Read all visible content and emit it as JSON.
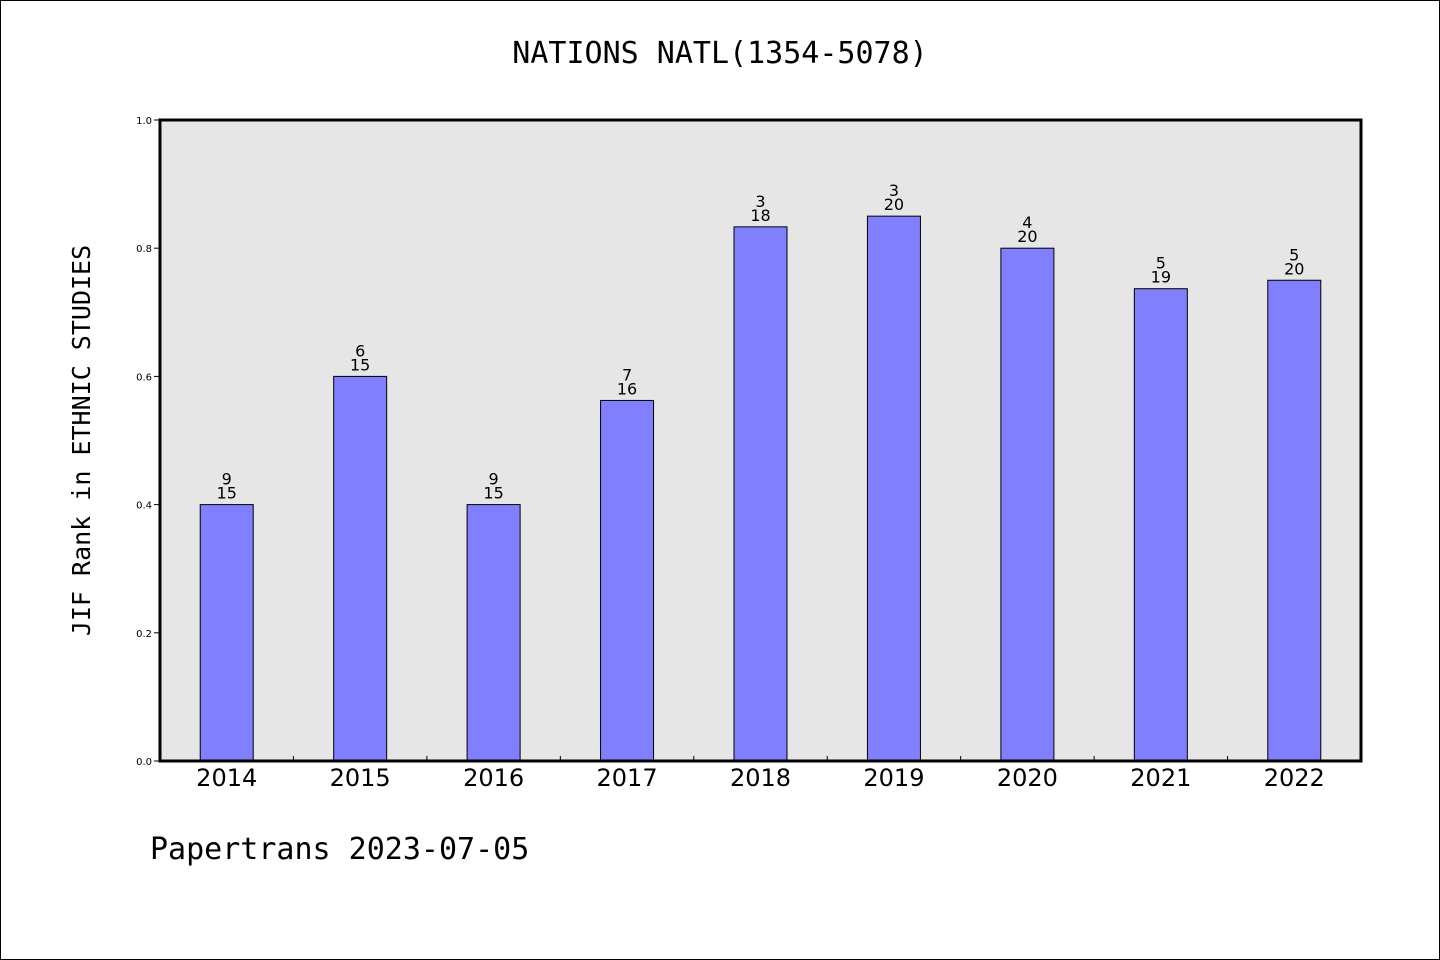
{
  "title": "NATIONS NATL(1354-5078)",
  "footer": "Papertrans 2023-07-05",
  "chart_data": {
    "type": "bar",
    "title": "NATIONS NATL(1354-5078)",
    "xlabel": "",
    "ylabel": "JIF Rank in ETHNIC STUDIES",
    "categories": [
      "2014",
      "2015",
      "2016",
      "2017",
      "2018",
      "2019",
      "2020",
      "2021",
      "2022"
    ],
    "values": [
      0.4,
      0.6,
      0.4,
      0.5625,
      0.8333,
      0.85,
      0.8,
      0.7368,
      0.75
    ],
    "rank": [
      "9",
      "6",
      "9",
      "7",
      "3",
      "3",
      "4",
      "5",
      "5"
    ],
    "total": [
      "15",
      "15",
      "15",
      "16",
      "18",
      "20",
      "20",
      "19",
      "20"
    ],
    "ylim": [
      0,
      1.0
    ],
    "yticks": [
      "0.0",
      "0.2",
      "0.4",
      "0.6",
      "0.8",
      "1.0"
    ],
    "grid": false,
    "colors": {
      "bar": "#8080ff",
      "plot_bg": "#e6e6e6",
      "bar_edge": "#000000"
    }
  }
}
